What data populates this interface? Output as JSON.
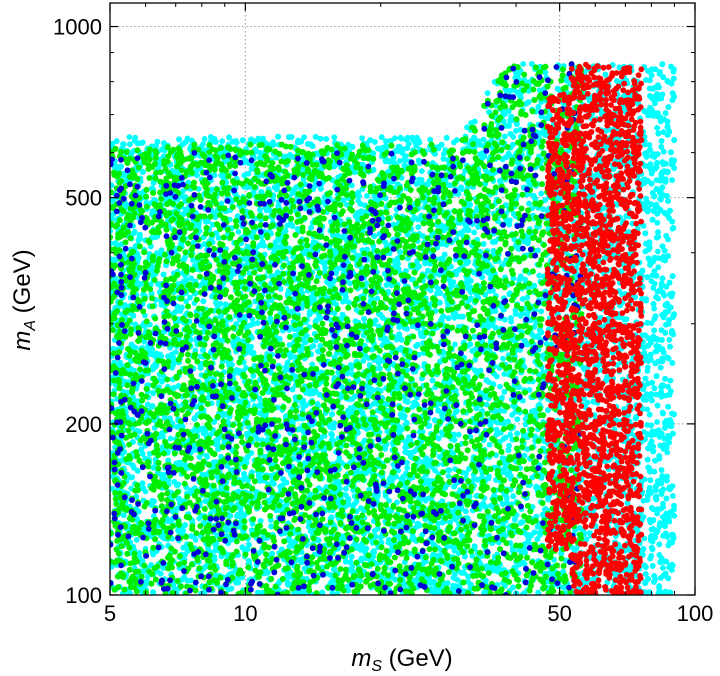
{
  "chart_data": {
    "type": "scatter",
    "title": "",
    "xlabel": {
      "main": "m",
      "sub": "S",
      "unit": " (GeV)"
    },
    "ylabel": {
      "main": "m",
      "sub": "A",
      "unit": " (GeV)"
    },
    "x_scale": "log",
    "y_scale": "log",
    "xlim": [
      5,
      100
    ],
    "ylim": [
      100,
      1100
    ],
    "x_ticks": [
      {
        "value": 5,
        "label": "5"
      },
      {
        "value": 10,
        "label": "10"
      },
      {
        "value": 50,
        "label": "50"
      },
      {
        "value": 100,
        "label": "100"
      }
    ],
    "y_ticks": [
      {
        "value": 100,
        "label": "100"
      },
      {
        "value": 200,
        "label": "200"
      },
      {
        "value": 500,
        "label": "500"
      },
      {
        "value": 1000,
        "label": "1000"
      }
    ],
    "grid": true,
    "legend": "none",
    "series": [
      {
        "color": "#00ffff",
        "regions": [
          {
            "x": [
              5,
              90
            ],
            "y_bottom": 100,
            "y_top": [
              [
                5,
                640
              ],
              [
                30,
                640
              ],
              [
                38,
                860
              ],
              [
                90,
                860
              ]
            ]
          }
        ]
      },
      {
        "color": "#00ee00",
        "regions": [
          {
            "x": [
              5,
              56
            ],
            "y_bottom": 100,
            "y_top": [
              [
                5,
                620
              ],
              [
                30,
                620
              ],
              [
                38,
                860
              ],
              [
                56,
                860
              ]
            ]
          }
        ]
      },
      {
        "color": "#0000dd",
        "sparse": true,
        "regions": [
          {
            "x": [
              5,
              56
            ],
            "y_bottom": 100,
            "y_top": [
              [
                5,
                600
              ],
              [
                30,
                600
              ],
              [
                38,
                860
              ],
              [
                56,
                860
              ]
            ]
          }
        ]
      },
      {
        "color": "#ff0000",
        "regions": [
          {
            "x": [
              53,
              76
            ],
            "y_bottom": 100,
            "y_top": 860
          },
          {
            "x": [
              47,
              53
            ],
            "y_bottom": 120,
            "y_top": 760
          }
        ]
      }
    ]
  }
}
